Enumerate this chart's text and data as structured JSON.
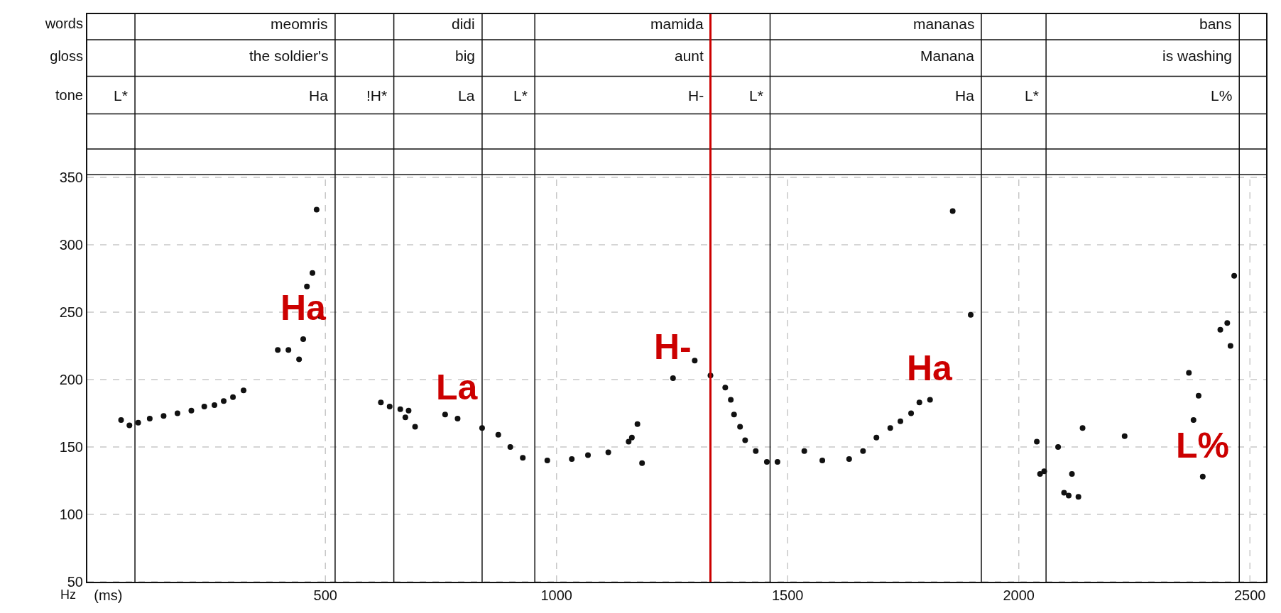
{
  "chart_data": {
    "type": "scatter",
    "ylabel": "Hz",
    "marker": "circle",
    "grid": true,
    "xlim": [
      -15,
      2535
    ],
    "xticks": [
      {
        "value": 30,
        "label": "(ms)"
      },
      500,
      1000,
      1500,
      2000,
      2500
    ],
    "ylim": [
      50,
      471
    ],
    "yticks": [
      50,
      100,
      150,
      200,
      250,
      300,
      350,
      {
        "value": 411,
        "label": "tone"
      },
      {
        "value": 440,
        "label": "gloss"
      },
      {
        "value": 464,
        "label": "words"
      }
    ],
    "series": [
      {
        "color": "#111111",
        "x": [
          58,
          76,
          95,
          120,
          150,
          180,
          210,
          238,
          260,
          280,
          300,
          323,
          397,
          420,
          443,
          452,
          460,
          472,
          481,
          489,
          620,
          639,
          662,
          680,
          673,
          694,
          759,
          786,
          839,
          874,
          900,
          927,
          980,
          1033,
          1068,
          1112,
          1156,
          1175,
          1163,
          1185,
          1252,
          1299,
          1333,
          1365,
          1377,
          1384,
          1397,
          1408,
          1431,
          1455,
          1478,
          1536,
          1575,
          1633,
          1663,
          1692,
          1722,
          1744,
          1767,
          1785,
          1808,
          1857,
          1896,
          2039,
          2046,
          2055,
          2085,
          2098,
          2108,
          2115,
          2129,
          2138,
          2229,
          2368,
          2378,
          2389,
          2398,
          2436,
          2451,
          2458,
          2466
        ],
        "values": [
          170,
          166,
          168,
          171,
          173,
          175,
          177,
          180,
          181,
          184,
          187,
          192,
          222,
          222,
          215,
          230,
          269,
          279,
          326,
          247,
          183,
          180,
          178,
          177,
          172,
          165,
          174,
          171,
          164,
          159,
          150,
          142,
          140,
          141,
          144,
          146,
          154,
          167,
          157,
          138,
          201,
          214,
          203,
          194,
          185,
          174,
          165,
          155,
          147,
          139,
          139,
          147,
          140,
          141,
          147,
          157,
          164,
          169,
          175,
          183,
          185,
          325,
          248,
          154,
          130,
          132,
          150,
          116,
          114,
          130,
          113,
          164,
          158,
          205,
          170,
          188,
          128,
          237,
          242,
          225,
          277
        ]
      }
    ],
    "ref_lines": [
      {
        "axis": "y",
        "value": 352,
        "label": null
      },
      {
        "axis": "y",
        "value": 371,
        "label": null
      },
      {
        "axis": "y",
        "value": 397,
        "label": null
      },
      {
        "axis": "y",
        "value": 425,
        "label": null
      },
      {
        "axis": "y",
        "value": 452,
        "label": null
      },
      {
        "axis": "x",
        "value": 88,
        "label": null
      },
      {
        "axis": "x",
        "value": 521,
        "label": null
      },
      {
        "axis": "x",
        "value": 648,
        "label": null
      },
      {
        "axis": "x",
        "value": 839,
        "label": null
      },
      {
        "axis": "x",
        "value": 953,
        "label": null
      },
      {
        "axis": "x",
        "value": 1333,
        "label": null,
        "color": "#cc0000"
      },
      {
        "axis": "x",
        "value": 1462,
        "label": null
      },
      {
        "axis": "x",
        "value": 1919,
        "label": null
      },
      {
        "axis": "x",
        "value": 2059,
        "label": null
      },
      {
        "axis": "x",
        "value": 2477,
        "label": null
      }
    ],
    "annotations": [
      {
        "text": "meomris",
        "x": 521,
        "y": 464
      },
      {
        "text": "didi",
        "x": 839,
        "y": 464
      },
      {
        "text": "mamida",
        "x": 1333,
        "y": 464
      },
      {
        "text": "mananas",
        "x": 1919,
        "y": 464
      },
      {
        "text": "bans",
        "x": 2477,
        "y": 464
      },
      {
        "text": "the soldier's",
        "x": 521,
        "y": 440
      },
      {
        "text": "big",
        "x": 839,
        "y": 440
      },
      {
        "text": "aunt",
        "x": 1333,
        "y": 440
      },
      {
        "text": "Manana",
        "x": 1919,
        "y": 440
      },
      {
        "text": "is washing",
        "x": 2477,
        "y": 440
      },
      {
        "text": "L*",
        "x": 88,
        "y": 411
      },
      {
        "text": "Ha",
        "x": 521,
        "y": 411
      },
      {
        "text": "!H*",
        "x": 648,
        "y": 411
      },
      {
        "text": "La",
        "x": 839,
        "y": 411
      },
      {
        "text": "L*",
        "x": 953,
        "y": 411
      },
      {
        "text": "H-",
        "x": 1333,
        "y": 411
      },
      {
        "text": "L*",
        "x": 1462,
        "y": 411
      },
      {
        "text": "Ha",
        "x": 1919,
        "y": 411
      },
      {
        "text": "L*",
        "x": 2059,
        "y": 411
      },
      {
        "text": "L%",
        "x": 2477,
        "y": 411
      },
      {
        "text": "Ha",
        "x": 452,
        "y": 230
      },
      {
        "text": "La",
        "x": 786,
        "y": 171
      },
      {
        "text": "H-",
        "x": 1252,
        "y": 201
      },
      {
        "text": "Ha",
        "x": 1808,
        "y": 185
      },
      {
        "text": "L%",
        "x": 2398,
        "y": 128
      }
    ]
  }
}
